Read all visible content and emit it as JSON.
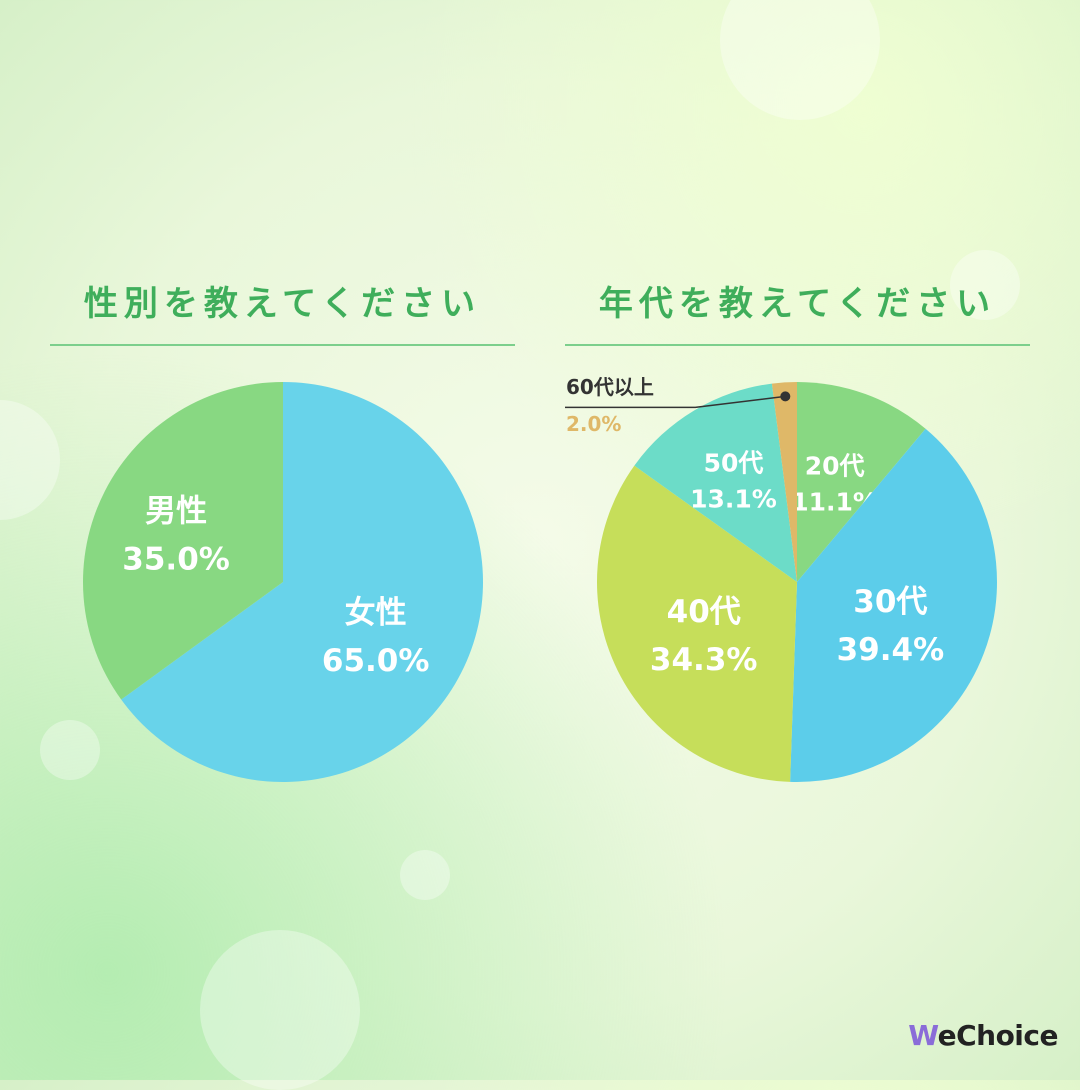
{
  "charts": [
    {
      "title": "性別を教えてください",
      "chart_data": {
        "type": "pie",
        "slices": [
          {
            "label": "女性",
            "value": 65.0,
            "value_label": "65.0%",
            "color": "#68d3ea"
          },
          {
            "label": "男性",
            "value": 35.0,
            "value_label": "35.0%",
            "color": "#88d882"
          }
        ]
      }
    },
    {
      "title": "年代を教えてください",
      "chart_data": {
        "type": "pie",
        "slices": [
          {
            "label": "20代",
            "value": 11.1,
            "value_label": "11.1%",
            "color": "#88d882"
          },
          {
            "label": "30代",
            "value": 39.4,
            "value_label": "39.4%",
            "color": "#5ccdea"
          },
          {
            "label": "40代",
            "value": 34.3,
            "value_label": "34.3%",
            "color": "#c6de5a"
          },
          {
            "label": "50代",
            "value": 13.1,
            "value_label": "13.1%",
            "color": "#6cdcc8"
          },
          {
            "label": "60代以上",
            "value": 2.0,
            "value_label": "2.0%",
            "color": "#dfb868"
          }
        ]
      }
    }
  ],
  "brand": {
    "logo_w": "W",
    "logo_rest": "eChoice"
  }
}
